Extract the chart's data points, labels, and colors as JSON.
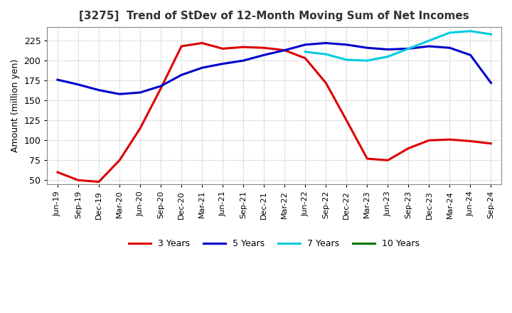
{
  "title": "[3275]  Trend of StDev of 12-Month Moving Sum of Net Incomes",
  "ylabel": "Amount (million yen)",
  "ylim": [
    45,
    242
  ],
  "yticks": [
    50,
    75,
    100,
    125,
    150,
    175,
    200,
    225
  ],
  "background_color": "#ffffff",
  "grid_color": "#aaaaaa",
  "line_colors": {
    "3y": "#dd0000",
    "5y": "#0000cc",
    "7y": "#00ccdd",
    "10y": "#007700"
  },
  "line_widths": {
    "3y": 2.2,
    "5y": 2.2,
    "7y": 2.2,
    "10y": 2.2
  },
  "x_labels": [
    "Jun-19",
    "Sep-19",
    "Dec-19",
    "Mar-20",
    "Jun-20",
    "Sep-20",
    "Dec-20",
    "Mar-21",
    "Jun-21",
    "Sep-21",
    "Dec-21",
    "Mar-22",
    "Jun-22",
    "Sep-22",
    "Dec-22",
    "Mar-23",
    "Jun-23",
    "Sep-23",
    "Dec-23",
    "Mar-24",
    "Jun-24",
    "Sep-24"
  ],
  "data_3y": [
    60,
    50,
    48,
    75,
    115,
    165,
    218,
    222,
    215,
    217,
    216,
    213,
    203,
    172,
    125,
    77,
    75,
    90,
    100,
    101,
    99,
    96
  ],
  "data_5y": [
    176,
    170,
    163,
    158,
    160,
    168,
    182,
    191,
    196,
    200,
    207,
    213,
    220,
    222,
    220,
    216,
    214,
    215,
    218,
    216,
    207,
    172
  ],
  "data_7y": [
    null,
    null,
    null,
    null,
    null,
    null,
    null,
    null,
    null,
    null,
    null,
    null,
    211,
    208,
    201,
    200,
    205,
    215,
    225,
    235,
    237,
    233
  ],
  "data_10y": [
    null,
    null,
    null,
    null,
    null,
    null,
    null,
    null,
    null,
    null,
    null,
    null,
    null,
    null,
    null,
    null,
    null,
    null,
    null,
    null,
    null,
    null
  ]
}
